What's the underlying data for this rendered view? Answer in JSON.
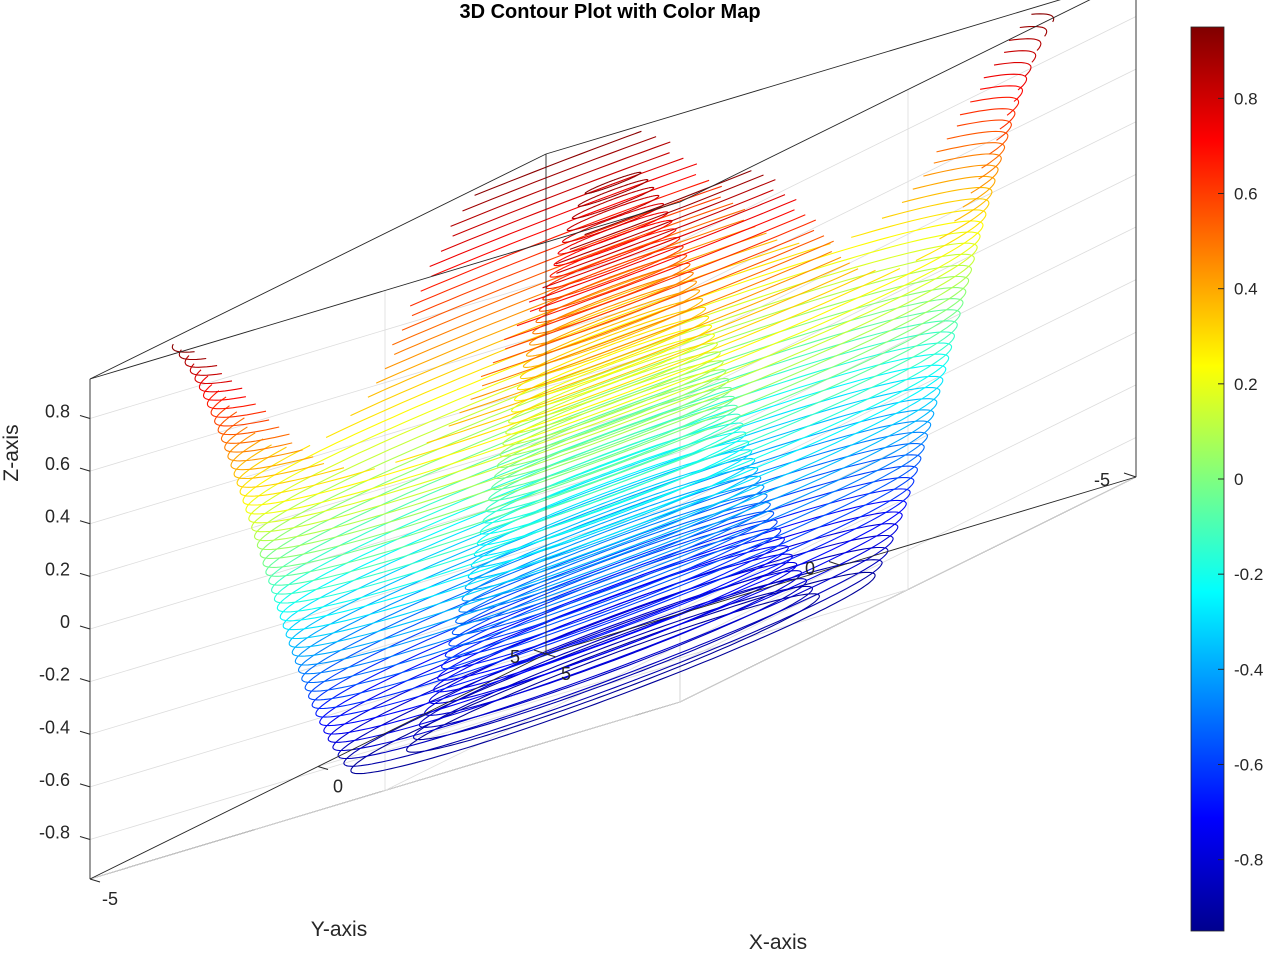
{
  "chart_data": {
    "type": "contour3",
    "title": "3D Contour Plot with Color Map",
    "xlabel": "X-axis",
    "ylabel": "Y-axis",
    "zlabel": "Z-axis",
    "xlim": [
      -5,
      5
    ],
    "ylim": [
      -5,
      5
    ],
    "zlim": [
      -0.95,
      0.95
    ],
    "x_ticks": [
      {
        "value": -5,
        "label": "-5"
      },
      {
        "value": 0,
        "label": "0"
      },
      {
        "value": 5,
        "label": "5"
      }
    ],
    "y_ticks": [
      {
        "value": -5,
        "label": "-5"
      },
      {
        "value": 0,
        "label": "0"
      },
      {
        "value": 5,
        "label": "5"
      }
    ],
    "z_ticks": [
      {
        "value": 0.8,
        "label": "0.8"
      },
      {
        "value": 0.6,
        "label": "0.6"
      },
      {
        "value": 0.4,
        "label": "0.4"
      },
      {
        "value": 0.2,
        "label": "0.2"
      },
      {
        "value": 0,
        "label": "0"
      },
      {
        "value": -0.2,
        "label": "-0.2"
      },
      {
        "value": -0.4,
        "label": "-0.4"
      },
      {
        "value": -0.6,
        "label": "-0.6"
      },
      {
        "value": -0.8,
        "label": "-0.8"
      }
    ],
    "function": "z = cos(sqrt(x^2 + y^2))",
    "contour_levels": 50,
    "colormap": "jet",
    "grid": true,
    "box": true,
    "colorbar": {
      "location": "right",
      "clim": [
        -0.95,
        0.95
      ],
      "ticks": [
        {
          "value": 0.8,
          "label": "0.8"
        },
        {
          "value": 0.6,
          "label": "0.6"
        },
        {
          "value": 0.4,
          "label": "0.4"
        },
        {
          "value": 0.2,
          "label": "0.2"
        },
        {
          "value": 0,
          "label": "0"
        },
        {
          "value": -0.2,
          "label": "-0.2"
        },
        {
          "value": -0.4,
          "label": "-0.4"
        },
        {
          "value": -0.6,
          "label": "-0.6"
        },
        {
          "value": -0.8,
          "label": "-0.8"
        }
      ]
    }
  }
}
